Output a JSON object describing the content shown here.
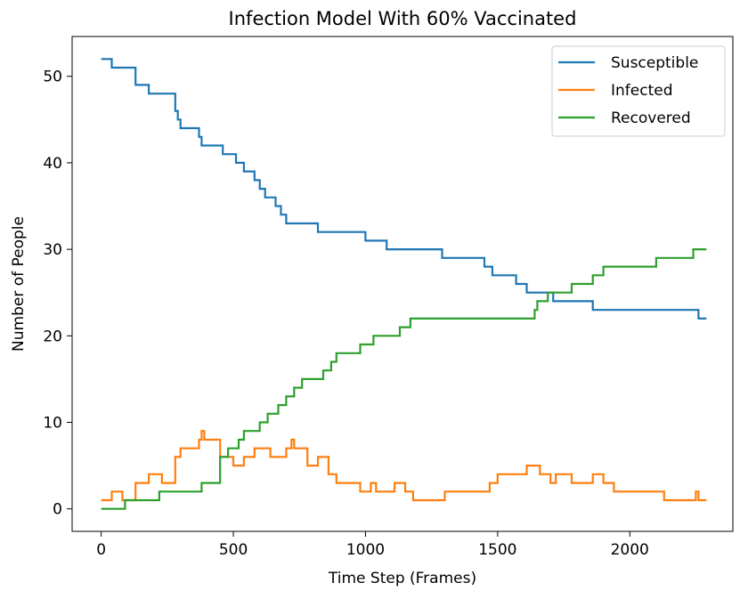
{
  "chart_data": {
    "type": "line",
    "title": "Infection Model With 60% Vaccinated",
    "xlabel": "Time Step (Frames)",
    "ylabel": "Number of People",
    "xlim": [
      -110,
      2390
    ],
    "ylim": [
      -2.6,
      54.6
    ],
    "xticks": [
      0,
      500,
      1000,
      1500,
      2000
    ],
    "yticks": [
      0,
      10,
      20,
      30,
      40,
      50
    ],
    "grid": false,
    "legend_position": "top-right",
    "series": [
      {
        "name": "Susceptible",
        "color": "#1f77b4",
        "step": true,
        "points": [
          [
            0,
            52
          ],
          [
            40,
            51
          ],
          [
            130,
            49
          ],
          [
            180,
            48
          ],
          [
            280,
            46
          ],
          [
            290,
            45
          ],
          [
            300,
            44
          ],
          [
            370,
            43
          ],
          [
            380,
            42
          ],
          [
            460,
            41
          ],
          [
            510,
            40
          ],
          [
            540,
            39
          ],
          [
            580,
            38
          ],
          [
            600,
            37
          ],
          [
            620,
            36
          ],
          [
            660,
            35
          ],
          [
            680,
            34
          ],
          [
            700,
            33
          ],
          [
            820,
            32
          ],
          [
            1000,
            31
          ],
          [
            1080,
            30
          ],
          [
            1290,
            29
          ],
          [
            1450,
            28
          ],
          [
            1480,
            27
          ],
          [
            1570,
            26
          ],
          [
            1610,
            25
          ],
          [
            1710,
            24
          ],
          [
            1860,
            23
          ],
          [
            2260,
            22
          ],
          [
            2290,
            22
          ]
        ]
      },
      {
        "name": "Infected",
        "color": "#ff7f0e",
        "step": true,
        "points": [
          [
            0,
            1
          ],
          [
            40,
            2
          ],
          [
            80,
            1
          ],
          [
            130,
            3
          ],
          [
            180,
            4
          ],
          [
            230,
            3
          ],
          [
            280,
            6
          ],
          [
            300,
            7
          ],
          [
            370,
            8
          ],
          [
            380,
            9
          ],
          [
            390,
            8
          ],
          [
            450,
            6
          ],
          [
            500,
            5
          ],
          [
            540,
            6
          ],
          [
            580,
            7
          ],
          [
            640,
            6
          ],
          [
            700,
            7
          ],
          [
            720,
            8
          ],
          [
            730,
            7
          ],
          [
            780,
            5
          ],
          [
            820,
            6
          ],
          [
            860,
            4
          ],
          [
            890,
            3
          ],
          [
            980,
            2
          ],
          [
            1020,
            3
          ],
          [
            1040,
            2
          ],
          [
            1110,
            3
          ],
          [
            1150,
            2
          ],
          [
            1180,
            1
          ],
          [
            1300,
            2
          ],
          [
            1470,
            3
          ],
          [
            1500,
            4
          ],
          [
            1610,
            5
          ],
          [
            1660,
            4
          ],
          [
            1700,
            3
          ],
          [
            1720,
            4
          ],
          [
            1780,
            3
          ],
          [
            1860,
            4
          ],
          [
            1900,
            3
          ],
          [
            1940,
            2
          ],
          [
            2130,
            1
          ],
          [
            2250,
            2
          ],
          [
            2260,
            1
          ],
          [
            2290,
            1
          ]
        ]
      },
      {
        "name": "Recovered",
        "color": "#2ca02c",
        "step": true,
        "points": [
          [
            0,
            0
          ],
          [
            90,
            1
          ],
          [
            220,
            2
          ],
          [
            380,
            3
          ],
          [
            450,
            6
          ],
          [
            480,
            7
          ],
          [
            520,
            8
          ],
          [
            540,
            9
          ],
          [
            600,
            10
          ],
          [
            630,
            11
          ],
          [
            670,
            12
          ],
          [
            700,
            13
          ],
          [
            730,
            14
          ],
          [
            760,
            15
          ],
          [
            840,
            16
          ],
          [
            870,
            17
          ],
          [
            890,
            18
          ],
          [
            980,
            19
          ],
          [
            1030,
            20
          ],
          [
            1130,
            21
          ],
          [
            1170,
            22
          ],
          [
            1640,
            23
          ],
          [
            1650,
            24
          ],
          [
            1690,
            25
          ],
          [
            1780,
            26
          ],
          [
            1860,
            27
          ],
          [
            1900,
            28
          ],
          [
            2100,
            29
          ],
          [
            2240,
            30
          ],
          [
            2290,
            30
          ]
        ]
      }
    ]
  }
}
